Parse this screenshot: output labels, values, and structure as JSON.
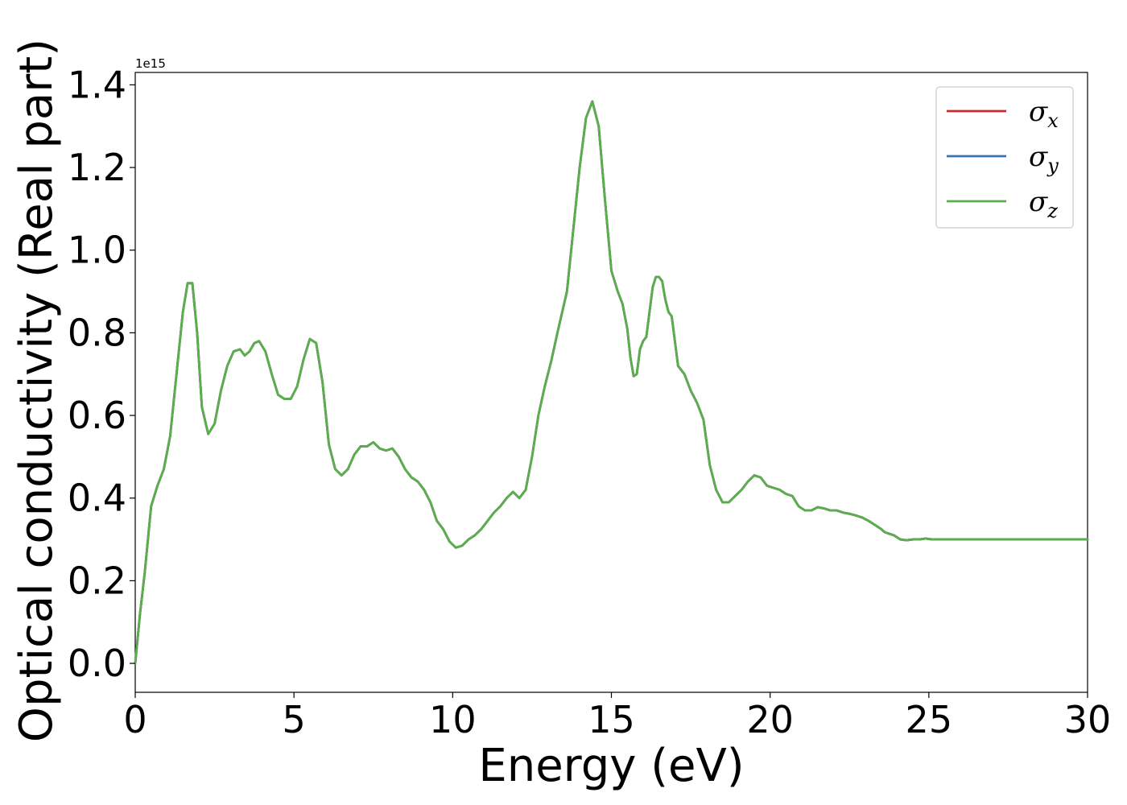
{
  "chart_data": {
    "type": "line",
    "xlabel": "Energy (eV)",
    "ylabel": "Optical conductivity (Real part)",
    "y_offset_label": "1e15",
    "xlim": [
      0,
      30
    ],
    "ylim": [
      -0.07,
      1.43
    ],
    "x_ticks": [
      "0",
      "5",
      "10",
      "15",
      "20",
      "25",
      "30"
    ],
    "y_ticks": [
      "0.0",
      "0.2",
      "0.4",
      "0.6",
      "0.8",
      "1.0",
      "1.2",
      "1.4"
    ],
    "grid": false,
    "legend_position": "top-right",
    "colors": {
      "sigma_x": "#d62728",
      "sigma_y": "#3b75af",
      "sigma_z": "#5aae4b"
    },
    "legend": [
      {
        "base": "σ",
        "sub": "x"
      },
      {
        "base": "σ",
        "sub": "y"
      },
      {
        "base": "σ",
        "sub": "z"
      }
    ],
    "x": [
      0,
      0.15,
      0.3,
      0.5,
      0.7,
      0.9,
      1.1,
      1.3,
      1.5,
      1.65,
      1.8,
      1.95,
      2.1,
      2.3,
      2.5,
      2.7,
      2.9,
      3.1,
      3.3,
      3.45,
      3.6,
      3.75,
      3.9,
      4.1,
      4.3,
      4.5,
      4.7,
      4.9,
      5.1,
      5.3,
      5.5,
      5.7,
      5.9,
      6.1,
      6.3,
      6.5,
      6.7,
      6.9,
      7.1,
      7.3,
      7.5,
      7.7,
      7.9,
      8.1,
      8.3,
      8.5,
      8.7,
      8.9,
      9.1,
      9.3,
      9.5,
      9.7,
      9.9,
      10.1,
      10.3,
      10.5,
      10.7,
      10.9,
      11.1,
      11.3,
      11.5,
      11.7,
      11.9,
      12.1,
      12.3,
      12.5,
      12.7,
      12.9,
      13.1,
      13.3,
      13.45,
      13.6,
      13.8,
      14.0,
      14.2,
      14.4,
      14.6,
      14.8,
      15.0,
      15.2,
      15.35,
      15.5,
      15.6,
      15.7,
      15.8,
      15.9,
      16.0,
      16.1,
      16.2,
      16.3,
      16.4,
      16.5,
      16.6,
      16.7,
      16.8,
      16.9,
      17.0,
      17.1,
      17.3,
      17.5,
      17.7,
      17.9,
      18.1,
      18.3,
      18.5,
      18.7,
      18.9,
      19.1,
      19.3,
      19.5,
      19.7,
      19.9,
      20.1,
      20.3,
      20.5,
      20.7,
      20.9,
      21.1,
      21.3,
      21.5,
      21.7,
      21.9,
      22.1,
      22.3,
      22.5,
      22.7,
      22.9,
      23.1,
      23.3,
      23.5,
      23.6,
      23.7,
      23.9,
      24.1,
      24.3,
      24.5,
      24.7,
      24.9,
      25.1,
      25.3,
      25.5,
      25.7,
      25.9,
      26.1,
      26.3,
      26.5,
      26.7,
      26.9,
      27.1,
      27.3,
      27.5,
      27.7,
      27.9,
      28.1,
      28.3,
      28.5,
      28.7,
      28.9,
      29.1,
      29.3,
      29.5,
      29.7,
      29.9,
      30.0
    ],
    "series": [
      {
        "name": "σx",
        "values": [
          0.0,
          0.12,
          0.22,
          0.38,
          0.43,
          0.47,
          0.55,
          0.7,
          0.85,
          0.92,
          0.92,
          0.8,
          0.62,
          0.555,
          0.58,
          0.66,
          0.72,
          0.755,
          0.76,
          0.745,
          0.755,
          0.775,
          0.78,
          0.755,
          0.7,
          0.65,
          0.64,
          0.64,
          0.67,
          0.735,
          0.785,
          0.775,
          0.68,
          0.53,
          0.47,
          0.455,
          0.47,
          0.505,
          0.525,
          0.525,
          0.535,
          0.52,
          0.515,
          0.52,
          0.5,
          0.47,
          0.45,
          0.44,
          0.42,
          0.39,
          0.345,
          0.325,
          0.295,
          0.28,
          0.285,
          0.3,
          0.31,
          0.325,
          0.345,
          0.365,
          0.38,
          0.4,
          0.415,
          0.4,
          0.42,
          0.5,
          0.6,
          0.67,
          0.73,
          0.8,
          0.85,
          0.9,
          1.05,
          1.2,
          1.32,
          1.36,
          1.3,
          1.12,
          0.95,
          0.9,
          0.87,
          0.81,
          0.74,
          0.695,
          0.7,
          0.76,
          0.78,
          0.79,
          0.85,
          0.91,
          0.935,
          0.935,
          0.925,
          0.88,
          0.85,
          0.84,
          0.78,
          0.72,
          0.7,
          0.66,
          0.63,
          0.59,
          0.48,
          0.42,
          0.39,
          0.39,
          0.405,
          0.42,
          0.44,
          0.455,
          0.45,
          0.43,
          0.425,
          0.42,
          0.41,
          0.405,
          0.38,
          0.37,
          0.37,
          0.378,
          0.375,
          0.37,
          0.37,
          0.365,
          0.362,
          0.358,
          0.353,
          0.345,
          0.335,
          0.325,
          0.318,
          0.315,
          0.31,
          0.3,
          0.298,
          0.3,
          0.3,
          0.302,
          0.3,
          0.3,
          0.3,
          0.3,
          0.3,
          0.3,
          0.3,
          0.3,
          0.3,
          0.3,
          0.3,
          0.3,
          0.3,
          0.3,
          0.3,
          0.3,
          0.3,
          0.3,
          0.3,
          0.3,
          0.3,
          0.3,
          0.3,
          0.3,
          0.3,
          0.3
        ]
      },
      {
        "name": "σy",
        "same_as": "σx"
      },
      {
        "name": "σz",
        "same_as": "σx"
      }
    ]
  }
}
